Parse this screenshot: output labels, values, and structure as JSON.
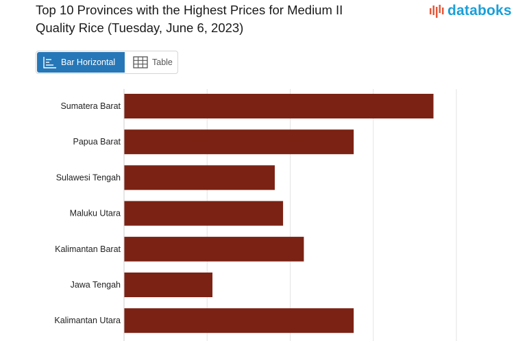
{
  "header": {
    "title_line1": "Top 10 Provinces with the Highest Prices for Medium II",
    "title_line2": "Quality Rice (Tuesday, June 6, 2023)",
    "brand": "databoks"
  },
  "tabs": [
    {
      "label": "Bar Horizontal",
      "icon": "bar-chart-icon",
      "active": true
    },
    {
      "label": "Table",
      "icon": "table-icon",
      "active": false
    }
  ],
  "colors": {
    "bar": "#7b2214",
    "active_tab": "#2677b8",
    "brand": "#1a9fd8",
    "brand_mark": "#e4583b"
  },
  "chart_data": {
    "type": "bar",
    "orientation": "horizontal",
    "categories": [
      "Sumatera Barat",
      "Papua Barat",
      "Sulawesi Tengah",
      "Maluku Utara",
      "Kalimantan Barat",
      "Jawa Tengah",
      "Kalimantan Utara"
    ],
    "values": [
      3.72,
      2.76,
      1.81,
      1.91,
      2.16,
      1.06,
      2.76
    ],
    "xlim": [
      0,
      4
    ],
    "grid": true
  }
}
